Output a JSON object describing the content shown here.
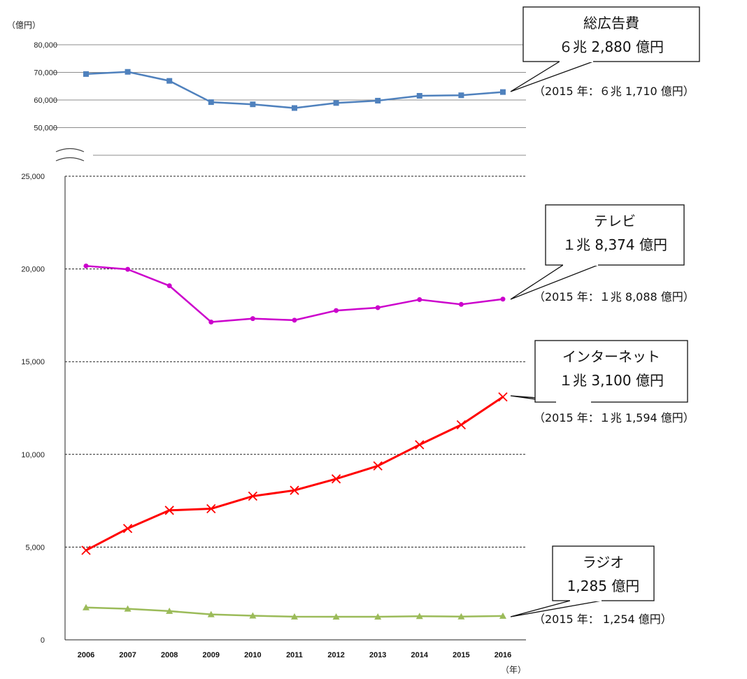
{
  "chart_data": {
    "type": "line",
    "unit_label": "（億円）",
    "year_label": "（年）",
    "x": [
      "2006",
      "2007",
      "2008",
      "2009",
      "2010",
      "2011",
      "2012",
      "2013",
      "2014",
      "2015",
      "2016"
    ],
    "upper_axis": {
      "ylim": [
        40000,
        80000
      ],
      "ticks": [
        "80,000",
        "70,000",
        "60,000",
        "50,000"
      ],
      "tick_values": [
        80000,
        70000,
        60000,
        50000
      ]
    },
    "lower_axis": {
      "ylim": [
        0,
        25000
      ],
      "ticks": [
        "25,000",
        "20,000",
        "15,000",
        "10,000",
        "5,000",
        "0"
      ],
      "tick_values": [
        25000,
        20000,
        15000,
        10000,
        5000,
        0
      ]
    },
    "series": [
      {
        "name": "総広告費",
        "panel": "upper",
        "color": "#4f81bd",
        "marker": "square",
        "values": [
          69399,
          70191,
          66926,
          59222,
          58427,
          57096,
          58913,
          59762,
          61522,
          61710,
          62880
        ],
        "callout": [
          "総広告費",
          "６兆 2,880 億円"
        ],
        "note": "（2015 年：６兆 1,710 億円）"
      },
      {
        "name": "テレビ",
        "panel": "lower",
        "color": "#cc00cc",
        "marker": "circle",
        "values": [
          20161,
          19981,
          19092,
          17139,
          17321,
          17237,
          17757,
          17913,
          18347,
          18088,
          18374
        ],
        "callout": [
          "テレビ",
          "１兆 8,374 億円"
        ],
        "note": "（2015 年：１兆 8,088 億円）"
      },
      {
        "name": "インターネット",
        "panel": "lower",
        "color": "#ff0000",
        "marker": "x",
        "values": [
          4826,
          6003,
          6983,
          7069,
          7747,
          8062,
          8680,
          9381,
          10519,
          11594,
          13100
        ],
        "callout": [
          "インターネット",
          "１兆 3,100 億円"
        ],
        "note": "（2015 年：１兆 1,594 億円）"
      },
      {
        "name": "ラジオ",
        "panel": "lower",
        "color": "#9bbb59",
        "marker": "triangle",
        "values": [
          1744,
          1671,
          1549,
          1370,
          1299,
          1247,
          1246,
          1243,
          1272,
          1254,
          1285
        ],
        "callout": [
          "ラジオ",
          "1,285 億円"
        ],
        "note": "（2015 年： 1,254 億円）"
      }
    ]
  }
}
